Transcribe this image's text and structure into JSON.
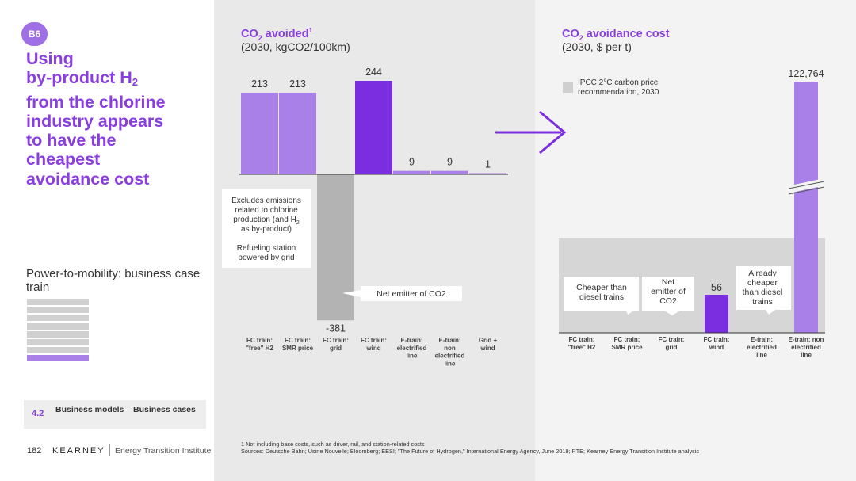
{
  "slide": {
    "badge": "B6",
    "headline_parts": [
      "Using",
      "by-product H",
      "2",
      "from the chlorine",
      "industry appears",
      "to have the",
      "cheapest",
      "avoidance cost"
    ],
    "subtitle": "Power-to-mobility: business case train",
    "progress": {
      "total": 8,
      "active_index": 7
    },
    "section_number": "4.2",
    "section_label": "Business models – Business cases",
    "page_number": "182",
    "brand": "KEARNEY",
    "institute": "Energy Transition Institute",
    "footnote": "1 Not including base costs, such as driver, rail, and station-related costs",
    "sources": "Sources: Deutsche Bahn; Usine Nouvelle; Bloomberg; EESI; \"The Future of Hydrogen,\" International Energy Agency, June 2019; RTE; Kearney Energy Transition Institute analysis",
    "colors": {
      "purple_dark": "#7b2de0",
      "purple_light": "#a880e8",
      "grey_bar": "#b3b3b3",
      "title_purple": "#8a3ee0"
    }
  },
  "chart_data": [
    {
      "type": "bar",
      "title_main": "CO",
      "title_sub": "2",
      "title_rest": " avoided",
      "title_sup": "1",
      "subtitle": "(2030, kgCO2/100km)",
      "categories": [
        [
          "FC train:",
          "\"free\" H2"
        ],
        [
          "FC train:",
          "SMR price"
        ],
        [
          "FC train:",
          "grid"
        ],
        [
          "FC train:",
          "wind"
        ],
        [
          "E-train:",
          "electrified",
          "line"
        ],
        [
          "E-train:",
          "non",
          "electrified",
          "line"
        ],
        [
          "Grid +",
          "wind"
        ]
      ],
      "values": [
        213,
        213,
        -381,
        244,
        9,
        9,
        1
      ],
      "value_labels": [
        "213",
        "213",
        "-381",
        "244",
        "9",
        "9",
        "1"
      ],
      "bar_colors": [
        "light",
        "light",
        "grey",
        "dark",
        "light",
        "light",
        "light"
      ],
      "ylim": [
        -381,
        244
      ],
      "annotations": {
        "excludes_lines": [
          "Excludes emissions",
          "related to chlorine",
          "production (and H",
          "as by-product)"
        ],
        "excludes_sub": "2",
        "refueling_lines": [
          "Refueling station",
          "powered by grid"
        ],
        "net_emitter": "Net emitter of CO2"
      }
    },
    {
      "type": "bar",
      "title_main": "CO",
      "title_sub": "2",
      "title_rest": " avoidance cost",
      "subtitle": "(2030, $ per t)",
      "categories": [
        [
          "FC train:",
          "\"free\" H2"
        ],
        [
          "FC train:",
          "SMR price"
        ],
        [
          "FC train:",
          "grid"
        ],
        [
          "FC train:",
          "wind"
        ],
        [
          "E-train:",
          "electrified",
          "line"
        ],
        [
          "E-train: non",
          "electrified",
          "line"
        ]
      ],
      "values": [
        null,
        null,
        null,
        56,
        null,
        122764
      ],
      "value_labels": [
        "",
        "",
        "",
        "56",
        "",
        "122,764"
      ],
      "axis_break": true,
      "legend": [
        "IPCC 2°C carbon price",
        "recommendation, 2030"
      ],
      "callouts": {
        "cheaper": [
          "Cheaper than",
          "diesel trains"
        ],
        "net_emitter": [
          "Net",
          "emitter of",
          "CO2"
        ],
        "already": [
          "Already",
          "cheaper",
          "than diesel",
          "trains"
        ]
      }
    }
  ]
}
